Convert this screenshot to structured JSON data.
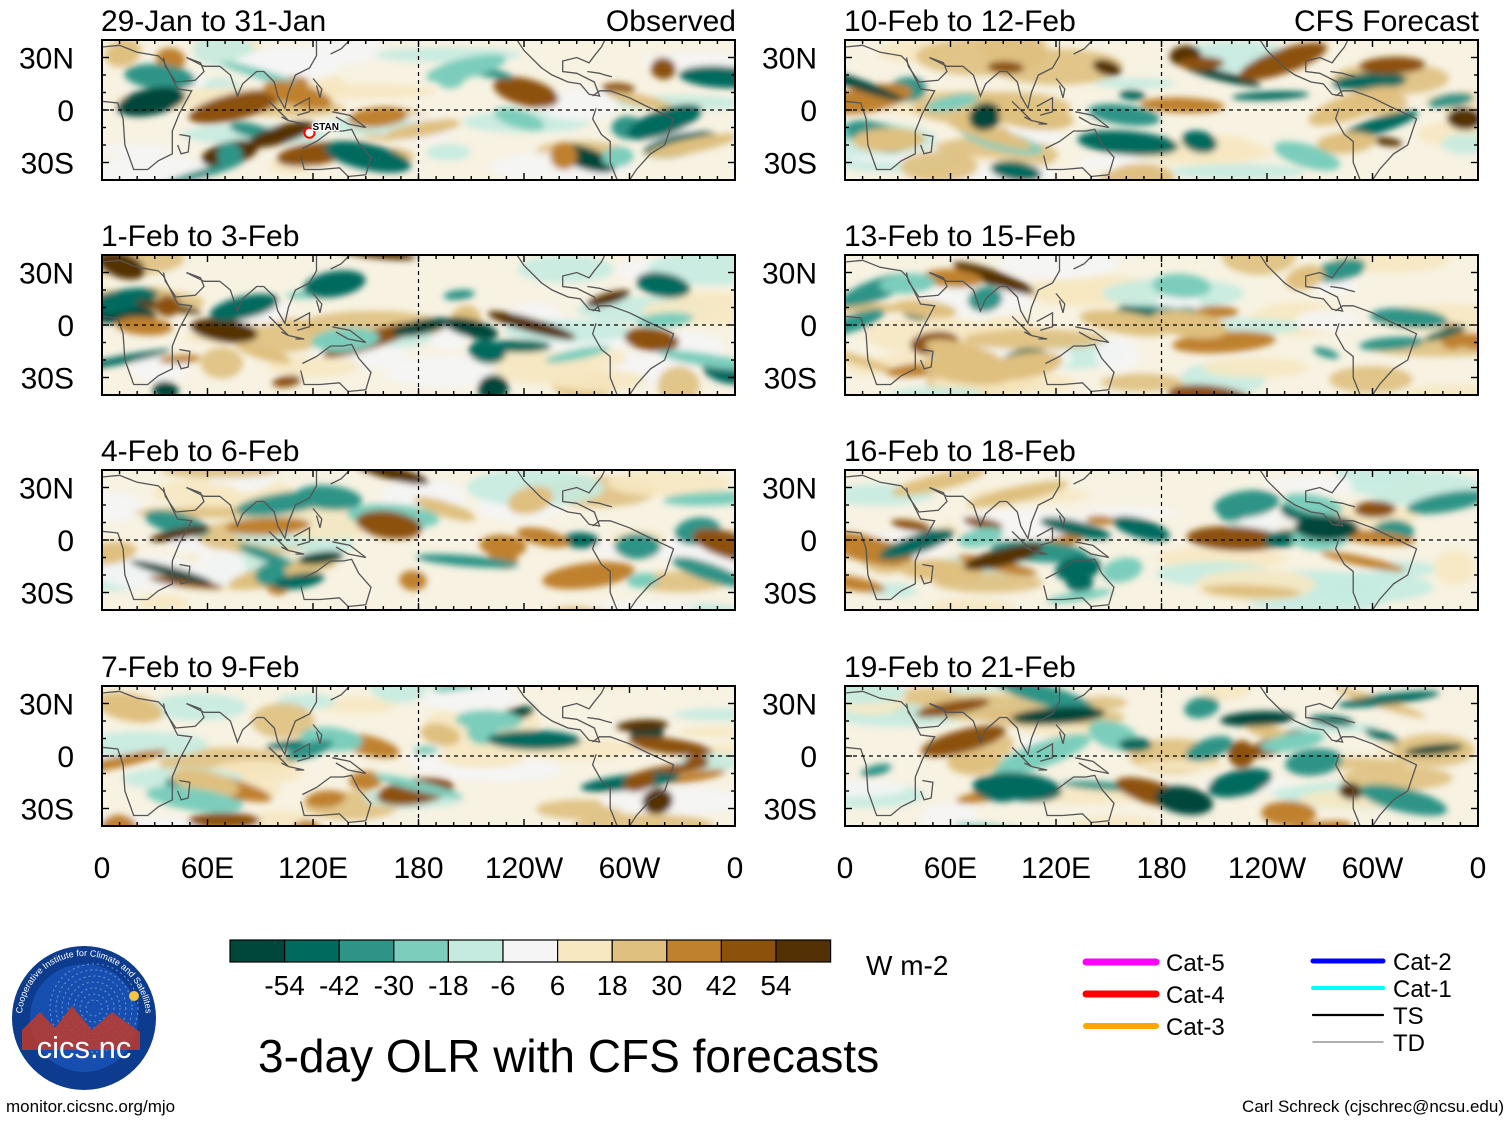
{
  "title": "3-day OLR with CFS forecasts",
  "footer": {
    "left": "monitor.cicsnc.org/mjo",
    "right": "Carl Schreck (cjschrec@ncsu.edu)"
  },
  "logo": {
    "text": "cics.nc",
    "ring_text": "Cooperative Institute for Climate and Satellites"
  },
  "columns": [
    {
      "label": "Observed"
    },
    {
      "label": "CFS Forecast"
    }
  ],
  "chart_data": {
    "type": "heatmap",
    "variable": "3-day OLR anomaly",
    "units": "W m-2",
    "x_ticks": [
      "0",
      "60E",
      "120E",
      "180",
      "120W",
      "60W",
      "0"
    ],
    "y_ticks": [
      "30N",
      "0",
      "30S"
    ],
    "colorbar": {
      "labels": [
        "-54",
        "-42",
        "-30",
        "-18",
        "-6",
        "6",
        "18",
        "30",
        "42",
        "54"
      ],
      "colors": [
        "#00473b",
        "#006a5e",
        "#2e9487",
        "#7ccdbc",
        "#c5ebe1",
        "#f5f5f5",
        "#f7e8c2",
        "#dfc07f",
        "#bf812d",
        "#8c510a",
        "#543005"
      ]
    },
    "panels": [
      {
        "period": "29-Jan to 31-Jan",
        "source": "Observed",
        "storm_label": "STAN"
      },
      {
        "period": "1-Feb to 3-Feb",
        "source": "Observed"
      },
      {
        "period": "4-Feb to 6-Feb",
        "source": "Observed"
      },
      {
        "period": "7-Feb to 9-Feb",
        "source": "Observed"
      },
      {
        "period": "10-Feb to 12-Feb",
        "source": "CFS Forecast"
      },
      {
        "period": "13-Feb to 15-Feb",
        "source": "CFS Forecast"
      },
      {
        "period": "16-Feb to 18-Feb",
        "source": "CFS Forecast"
      },
      {
        "period": "19-Feb to 21-Feb",
        "source": "CFS Forecast"
      }
    ],
    "legend": [
      {
        "label": "Cat-5",
        "color": "#ff00ff"
      },
      {
        "label": "Cat-4",
        "color": "#ff0000"
      },
      {
        "label": "Cat-3",
        "color": "#ffa500"
      },
      {
        "label": "Cat-2",
        "color": "#0000ff"
      },
      {
        "label": "Cat-1",
        "color": "#00ffff"
      },
      {
        "label": "TS",
        "color": "#000000"
      },
      {
        "label": "TD",
        "color": "#808080"
      }
    ]
  }
}
